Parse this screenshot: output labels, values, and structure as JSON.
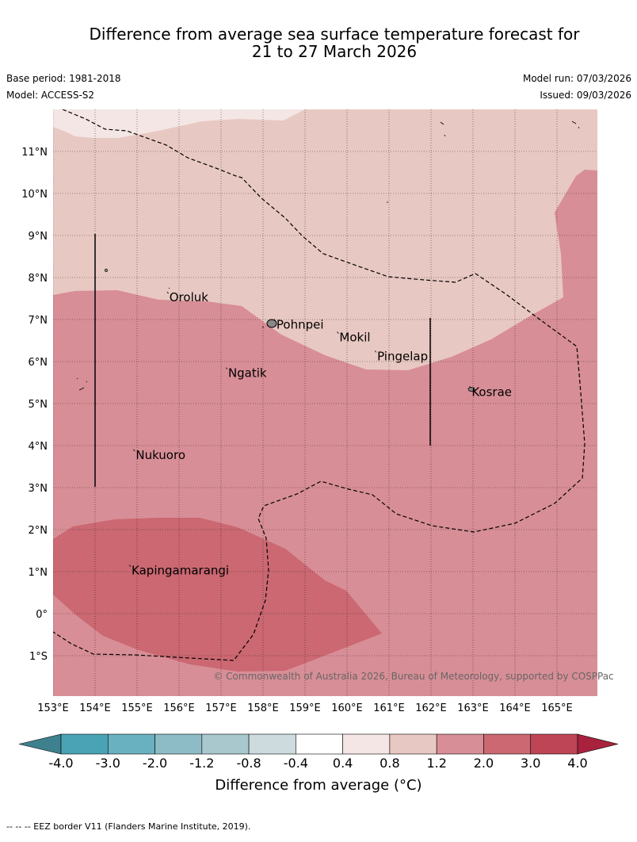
{
  "title_line1": "Difference from average sea surface temperature forecast for",
  "title_line2": "21 to 27 March 2026",
  "base_period": "Base period: 1981-2018",
  "model": "Model: ACCESS-S2",
  "model_run": "Model run: 07/03/2026",
  "issued": "Issued: 09/03/2026",
  "copyright": "© Commonwealth of Australia 2026, Bureau of Meteorology, supported by COSPPac",
  "map": {
    "lon_range": [
      153,
      166
    ],
    "lat_range": [
      -2,
      12
    ],
    "lon_ticks": [
      {
        "value": 153,
        "label": "153°E"
      },
      {
        "value": 154,
        "label": "154°E"
      },
      {
        "value": 155,
        "label": "155°E"
      },
      {
        "value": 156,
        "label": "156°E"
      },
      {
        "value": 157,
        "label": "157°E"
      },
      {
        "value": 158,
        "label": "158°E"
      },
      {
        "value": 159,
        "label": "159°E"
      },
      {
        "value": 160,
        "label": "160°E"
      },
      {
        "value": 161,
        "label": "161°E"
      },
      {
        "value": 162,
        "label": "162°E"
      },
      {
        "value": 163,
        "label": "163°E"
      },
      {
        "value": 164,
        "label": "164°E"
      },
      {
        "value": 165,
        "label": "165°E"
      }
    ],
    "lat_ticks": [
      {
        "value": 11,
        "label": "11°N"
      },
      {
        "value": 10,
        "label": "10°N"
      },
      {
        "value": 9,
        "label": "9°N"
      },
      {
        "value": 8,
        "label": "8°N"
      },
      {
        "value": 7,
        "label": "7°N"
      },
      {
        "value": 6,
        "label": "6°N"
      },
      {
        "value": 5,
        "label": "5°N"
      },
      {
        "value": 4,
        "label": "4°N"
      },
      {
        "value": 3,
        "label": "3°N"
      },
      {
        "value": 2,
        "label": "2°N"
      },
      {
        "value": 1,
        "label": "1°N"
      },
      {
        "value": 0,
        "label": "0°"
      },
      {
        "value": -1,
        "label": "1°S"
      }
    ],
    "places": [
      {
        "name": "Oroluk",
        "lon": 155.75,
        "lat": 7.6
      },
      {
        "name": "Pohnpei",
        "lon": 158.3,
        "lat": 6.95
      },
      {
        "name": "Mokil",
        "lon": 159.8,
        "lat": 6.65
      },
      {
        "name": "Pingelap",
        "lon": 160.7,
        "lat": 6.2
      },
      {
        "name": "Ngatik",
        "lon": 157.15,
        "lat": 5.8
      },
      {
        "name": "Kosrae",
        "lon": 162.95,
        "lat": 5.35
      },
      {
        "name": "Nukuoro",
        "lon": 154.95,
        "lat": 3.85
      },
      {
        "name": "Kapingamarangi",
        "lon": 154.85,
        "lat": 1.1
      }
    ]
  },
  "colorbar": {
    "label": "Difference from average (°C)",
    "bins": [
      {
        "value": "-4.0",
        "color": "#4aa3b4"
      },
      {
        "value": "-3.0",
        "color": "#69b1c0"
      },
      {
        "value": "-2.0",
        "color": "#8ebcc6"
      },
      {
        "value": "-1.2",
        "color": "#a9c8cd"
      },
      {
        "value": "-0.8",
        "color": "#cddbdf"
      },
      {
        "value": "-0.4",
        "color": "#ffffff"
      },
      {
        "value": "0.4",
        "color": "#f3e6e4"
      },
      {
        "value": "0.8",
        "color": "#e8c8c2"
      },
      {
        "value": "1.2",
        "color": "#d88e96"
      },
      {
        "value": "2.0",
        "color": "#cb6872"
      },
      {
        "value": "3.0",
        "color": "#be4556"
      },
      {
        "value": "4.0",
        "color": ""
      }
    ],
    "low_extend_color": "#3f808e",
    "high_extend_color": "#a8223d"
  },
  "legend_note": "--  --  -- EEZ border V11 (Flanders Marine Institute, 2019)."
}
